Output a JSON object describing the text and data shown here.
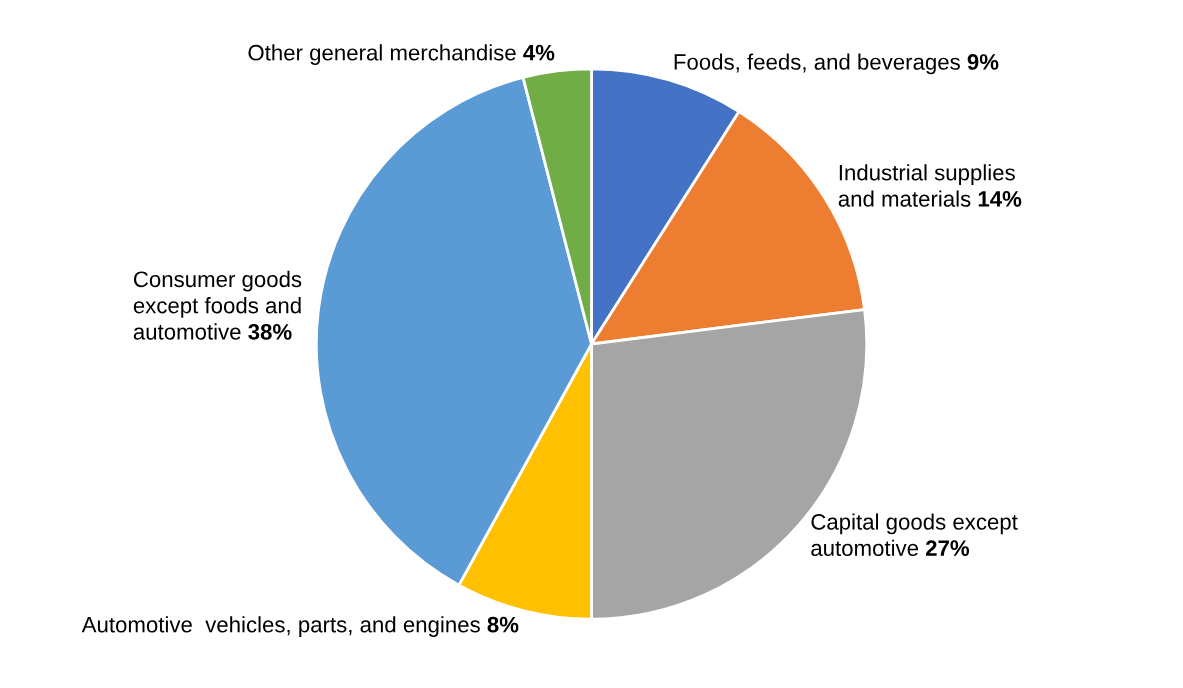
{
  "chart_data": {
    "type": "pie",
    "categories": [
      "Foods, feeds, and beverages",
      "Industrial supplies\nand materials",
      "Capital goods except\nautomotive",
      "Automotive  vehicles, parts, and engines",
      "Consumer goods\nexcept foods and\nautomotive",
      "Other general merchandise"
    ],
    "values": [
      9,
      14,
      27,
      8,
      38,
      4
    ],
    "colors": [
      "#4472c4",
      "#ed7d31",
      "#a5a5a5",
      "#ffc000",
      "#5b9bd5",
      "#70ad47"
    ],
    "value_labels": [
      "9%",
      "14%",
      "27%",
      "8%",
      "38%",
      "4%"
    ],
    "legend": false
  }
}
